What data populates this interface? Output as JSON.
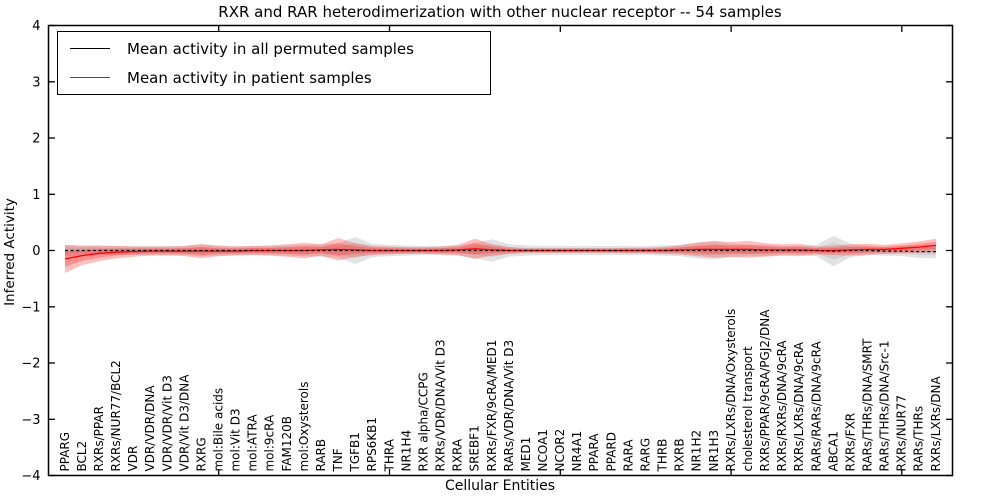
{
  "chart_data": {
    "type": "line",
    "title": "RXR and RAR heterodimerization with other nuclear receptor -- 54 samples",
    "xlabel": "Cellular Entities",
    "ylabel": "Inferred Activity",
    "ylim": [
      -4,
      4
    ],
    "yticks": [
      -4,
      -3,
      -2,
      -1,
      0,
      1,
      2,
      3,
      4
    ],
    "grid": false,
    "legend_position": "upper left",
    "categories": [
      "PPARG",
      "BCL2",
      "RXRs/PPAR",
      "RXRs/NUR77/BCL2",
      "VDR",
      "VDR/VDR/DNA",
      "VDR/VDR/Vit D3",
      "VDR/Vit D3/DNA",
      "RXRG",
      "mol:Bile acids",
      "mol:Vit D3",
      "mol:ATRA",
      "mol:9cRA",
      "FAM120B",
      "mol:Oxysterols",
      "RARB",
      "TNF",
      "TGFB1",
      "RPS6KB1",
      "THRA",
      "NR1H4",
      "RXR alpha/CCPG",
      "RXRs/VDR/DNA/Vit D3",
      "RXRA",
      "SREBF1",
      "RXRs/FXR/9cRA/MED1",
      "RARs/VDR/DNA/Vit D3",
      "MED1",
      "NCOA1",
      "NCOR2",
      "NR4A1",
      "PPARA",
      "PPARD",
      "RARA",
      "RARG",
      "THRB",
      "RXRB",
      "NR1H2",
      "NR1H3",
      "RXRs/LXRs/DNA/Oxysterols",
      "cholesterol transport",
      "RXRs/PPAR/9cRA/PGJ2/DNA",
      "RXRs/RXRs/DNA/9cRA",
      "RXRs/LXRs/DNA/9cRA",
      "RARs/RARs/DNA/9cRA",
      "ABCA1",
      "RXRs/FXR",
      "RARs/THRs/DNA/SMRT",
      "RARs/THRs/DNA/Src-1",
      "RXRs/NUR77",
      "RARs/THRs",
      "RXRs/LXRs/DNA"
    ],
    "series": [
      {
        "name": "Mean activity in all permuted samples",
        "color": "#000000",
        "band_color": "#bbbbbb",
        "values": [
          0,
          0,
          0,
          0,
          0,
          0,
          0,
          0,
          0,
          0,
          0,
          0,
          0,
          0,
          0,
          0,
          0,
          0,
          0,
          0,
          0,
          0,
          0,
          0,
          0,
          0,
          0,
          0,
          0,
          0,
          0,
          0,
          0,
          0,
          0,
          0,
          0,
          0,
          0,
          0,
          0,
          0,
          0,
          0,
          0,
          -0.01,
          0,
          0,
          -0.01,
          -0.01,
          -0.02,
          -0.02
        ],
        "band": [
          0.1,
          0.09,
          0.08,
          0.08,
          0.08,
          0.08,
          0.08,
          0.08,
          0.1,
          0.09,
          0.08,
          0.08,
          0.08,
          0.09,
          0.1,
          0.11,
          0.13,
          0.24,
          0.12,
          0.1,
          0.09,
          0.08,
          0.08,
          0.09,
          0.14,
          0.2,
          0.11,
          0.09,
          0.08,
          0.08,
          0.08,
          0.08,
          0.08,
          0.08,
          0.08,
          0.09,
          0.1,
          0.14,
          0.16,
          0.12,
          0.1,
          0.1,
          0.08,
          0.08,
          0.1,
          0.27,
          0.12,
          0.08,
          0.08,
          0.09,
          0.11,
          0.12
        ]
      },
      {
        "name": "Mean activity in patient samples",
        "color": "#ff0000",
        "band_color": "#ff2a2a",
        "values": [
          -0.15,
          -0.09,
          -0.05,
          -0.03,
          -0.02,
          -0.01,
          -0.01,
          -0.01,
          -0.01,
          -0.01,
          -0.01,
          0,
          0,
          0,
          0,
          0.01,
          0.02,
          0.01,
          0,
          0,
          0,
          0,
          0,
          0.01,
          0.03,
          0.01,
          0,
          0,
          0,
          0,
          0,
          0,
          0,
          0,
          0,
          0,
          0.01,
          0.02,
          0.02,
          0.02,
          0.02,
          0.01,
          0.01,
          0.01,
          0,
          0,
          0.01,
          0.02,
          0.02,
          0.04,
          0.06,
          0.09
        ],
        "band": [
          0.25,
          0.17,
          0.14,
          0.11,
          0.09,
          0.08,
          0.08,
          0.09,
          0.13,
          0.09,
          0.08,
          0.08,
          0.09,
          0.11,
          0.14,
          0.1,
          0.2,
          0.12,
          0.08,
          0.07,
          0.06,
          0.06,
          0.07,
          0.09,
          0.18,
          0.1,
          0.06,
          0.04,
          0.04,
          0.04,
          0.04,
          0.04,
          0.04,
          0.05,
          0.05,
          0.06,
          0.08,
          0.12,
          0.15,
          0.13,
          0.15,
          0.12,
          0.1,
          0.11,
          0.07,
          0.08,
          0.1,
          0.1,
          0.08,
          0.09,
          0.1,
          0.12
        ]
      }
    ],
    "legend": [
      {
        "label": "Mean activity in all permuted samples",
        "color": "#000000"
      },
      {
        "label": "Mean activity in patient samples",
        "color": "#ff0000"
      }
    ]
  }
}
